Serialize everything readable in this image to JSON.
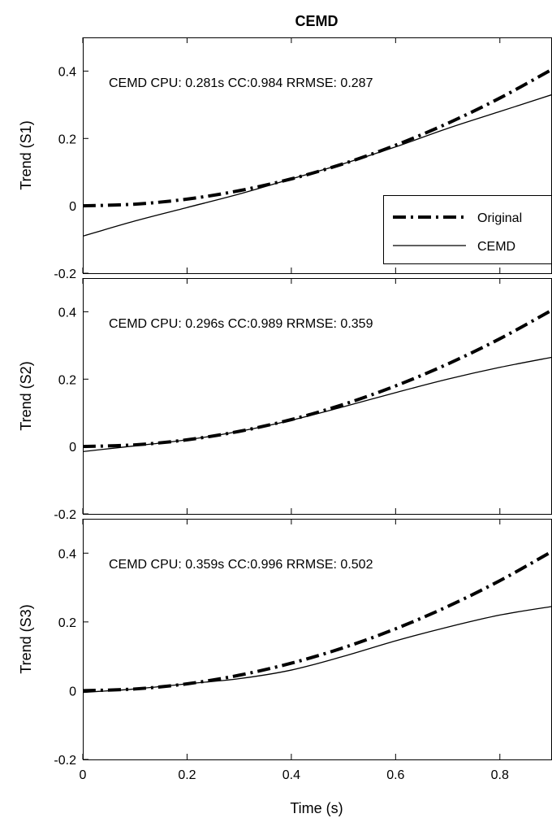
{
  "chart_data": {
    "type": "line",
    "title": "CEMD",
    "xlabel": "Time (s)",
    "xlim": [
      0,
      0.9
    ],
    "x_ticks": [
      0,
      0.2,
      0.4,
      0.6,
      0.8
    ],
    "x_tick_labels": [
      "0",
      "0.2",
      "0.4",
      "0.6",
      "0.8"
    ],
    "legend": {
      "location": "bottom-right",
      "entries": [
        "Original",
        "CEMD"
      ]
    },
    "panels": [
      {
        "ylabel": "Trend (S1)",
        "ylim": [
          -0.2,
          0.5
        ],
        "y_ticks": [
          -0.2,
          0,
          0.2,
          0.4
        ],
        "y_tick_labels": [
          "-0.2",
          "0",
          "0.2",
          "0.4"
        ],
        "annotation": "CEMD CPU: 0.281s CC:0.984 RRMSE: 0.287",
        "x": [
          0,
          0.1,
          0.2,
          0.3,
          0.4,
          0.5,
          0.6,
          0.7,
          0.8,
          0.9
        ],
        "series": [
          {
            "name": "Original",
            "style": "dashdot",
            "values": [
              0,
              0.005,
              0.02,
              0.045,
              0.08,
              0.125,
              0.18,
              0.245,
              0.32,
              0.405
            ]
          },
          {
            "name": "CEMD",
            "style": "solid",
            "values": [
              -0.09,
              -0.045,
              -0.005,
              0.035,
              0.08,
              0.125,
              0.175,
              0.23,
              0.28,
              0.33
            ]
          }
        ]
      },
      {
        "ylabel": "Trend (S2)",
        "ylim": [
          -0.2,
          0.5
        ],
        "y_ticks": [
          -0.2,
          0,
          0.2,
          0.4
        ],
        "y_tick_labels": [
          "-0.2",
          "0",
          "0.2",
          "0.4"
        ],
        "annotation": "CEMD CPU: 0.296s CC:0.989 RRMSE: 0.359",
        "x": [
          0,
          0.1,
          0.2,
          0.3,
          0.4,
          0.5,
          0.6,
          0.7,
          0.8,
          0.9
        ],
        "series": [
          {
            "name": "Original",
            "style": "dashdot",
            "values": [
              0,
              0.005,
              0.02,
              0.045,
              0.08,
              0.125,
              0.18,
              0.245,
              0.32,
              0.405
            ]
          },
          {
            "name": "CEMD",
            "style": "solid",
            "values": [
              -0.015,
              0.002,
              0.02,
              0.045,
              0.078,
              0.118,
              0.16,
              0.2,
              0.235,
              0.265
            ]
          }
        ]
      },
      {
        "ylabel": "Trend (S3)",
        "ylim": [
          -0.2,
          0.5
        ],
        "y_ticks": [
          -0.2,
          0,
          0.2,
          0.4
        ],
        "y_tick_labels": [
          "-0.2",
          "0",
          "0.2",
          "0.4"
        ],
        "annotation": "CEMD CPU: 0.359s CC:0.996 RRMSE: 0.502",
        "x": [
          0,
          0.1,
          0.2,
          0.3,
          0.4,
          0.5,
          0.6,
          0.7,
          0.8,
          0.9
        ],
        "series": [
          {
            "name": "Original",
            "style": "dashdot",
            "values": [
              0,
              0.005,
              0.02,
              0.045,
              0.08,
              0.125,
              0.18,
              0.245,
              0.32,
              0.405
            ]
          },
          {
            "name": "CEMD",
            "style": "solid",
            "values": [
              -0.005,
              0.005,
              0.02,
              0.035,
              0.06,
              0.1,
              0.145,
              0.185,
              0.22,
              0.245
            ]
          }
        ]
      }
    ]
  }
}
